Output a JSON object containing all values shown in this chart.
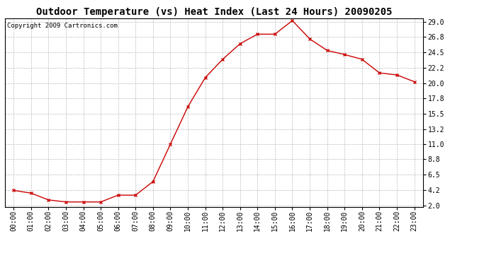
{
  "title": "Outdoor Temperature (vs) Heat Index (Last 24 Hours) 20090205",
  "copyright_text": "Copyright 2009 Cartronics.com",
  "x_labels": [
    "00:00",
    "01:00",
    "02:00",
    "03:00",
    "04:00",
    "05:00",
    "06:00",
    "07:00",
    "08:00",
    "09:00",
    "10:00",
    "11:00",
    "12:00",
    "13:00",
    "14:00",
    "15:00",
    "16:00",
    "17:00",
    "18:00",
    "19:00",
    "20:00",
    "21:00",
    "22:00",
    "23:00"
  ],
  "y_values": [
    4.2,
    3.8,
    2.8,
    2.5,
    2.5,
    2.5,
    3.5,
    3.5,
    5.5,
    11.0,
    16.5,
    20.8,
    23.5,
    25.8,
    27.2,
    27.2,
    29.2,
    26.5,
    24.8,
    24.2,
    23.5,
    21.5,
    21.2,
    20.2
  ],
  "line_color": "#cc0000",
  "marker_color": "#cc0000",
  "bg_color": "#ffffff",
  "plot_bg_color": "#ffffff",
  "grid_color": "#aaaaaa",
  "y_ticks": [
    2.0,
    4.2,
    6.5,
    8.8,
    11.0,
    13.2,
    15.5,
    17.8,
    20.0,
    22.2,
    24.5,
    26.8,
    29.0
  ],
  "y_tick_labels": [
    "2.0",
    "4.2",
    "6.5",
    "8.8",
    "11.0",
    "13.2",
    "15.5",
    "17.8",
    "20.0",
    "22.2",
    "24.5",
    "26.8",
    "29.0"
  ],
  "y_min": 1.8,
  "y_max": 29.5,
  "title_fontsize": 10,
  "tick_fontsize": 7,
  "copyright_fontsize": 6.5
}
